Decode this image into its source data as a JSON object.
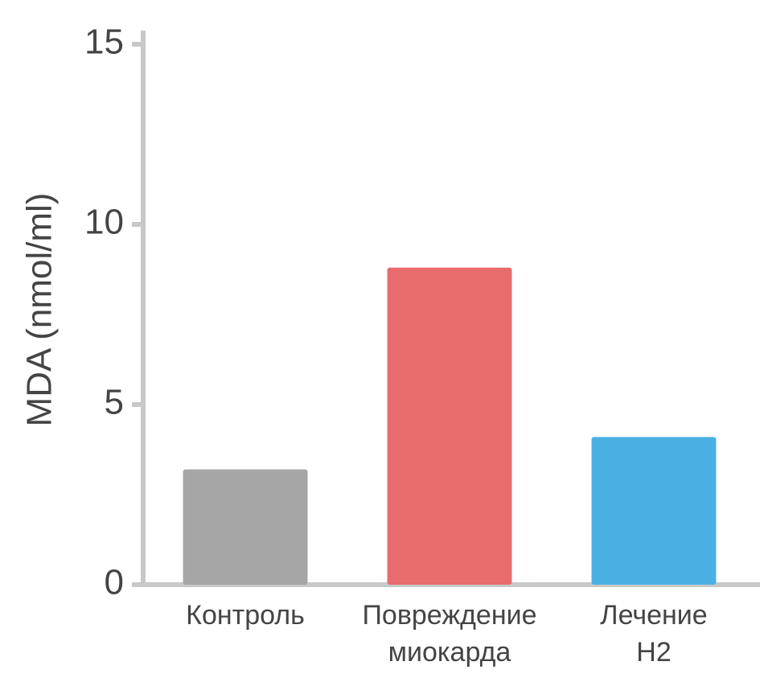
{
  "chart_data": {
    "type": "bar",
    "y_label": "MDA (nmol/ml)",
    "categories": [
      [
        "Контроль"
      ],
      [
        "Повреждение",
        "миокарда"
      ],
      [
        "Лечение",
        "H2"
      ]
    ],
    "values": [
      3.2,
      8.8,
      4.1
    ],
    "colors": [
      "#a6a6a6",
      "#e86b6e",
      "#4ab0e4"
    ],
    "ylim": [
      0,
      15
    ],
    "yticks": [
      0,
      5,
      10,
      15
    ],
    "grid": false
  }
}
